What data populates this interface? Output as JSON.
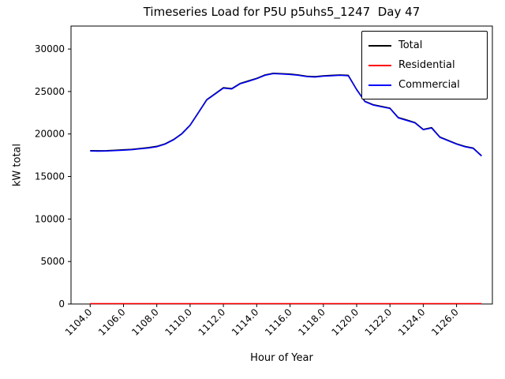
{
  "chart_data": {
    "type": "line",
    "title": "Timeseries Load for P5U p5uhs5_1247  Day 47",
    "xlabel": "Hour of Year",
    "ylabel": "kW total",
    "grid": false,
    "legend_position": "upper right",
    "xlim": [
      1102.85,
      1128.15
    ],
    "ylim": [
      0,
      32700
    ],
    "xticks": [
      1104,
      1106,
      1108,
      1110,
      1112,
      1114,
      1116,
      1118,
      1120,
      1122,
      1124,
      1126
    ],
    "xtick_labels": [
      "1104.0",
      "1106.0",
      "1108.0",
      "1110.0",
      "1112.0",
      "1114.0",
      "1116.0",
      "1118.0",
      "1120.0",
      "1122.0",
      "1124.0",
      "1126.0"
    ],
    "yticks": [
      0,
      5000,
      10000,
      15000,
      20000,
      25000,
      30000
    ],
    "ytick_labels": [
      "0",
      "5000",
      "10000",
      "15000",
      "20000",
      "25000",
      "30000"
    ],
    "x": [
      1104.0,
      1104.5,
      1105.0,
      1105.5,
      1106.0,
      1106.5,
      1107.0,
      1107.5,
      1108.0,
      1108.5,
      1109.0,
      1109.5,
      1110.0,
      1110.5,
      1111.0,
      1111.5,
      1112.0,
      1112.5,
      1113.0,
      1113.5,
      1114.0,
      1114.5,
      1115.0,
      1115.5,
      1116.0,
      1116.5,
      1117.0,
      1117.5,
      1118.0,
      1118.5,
      1119.0,
      1119.5,
      1120.0,
      1120.5,
      1121.0,
      1121.5,
      1122.0,
      1122.5,
      1123.0,
      1123.5,
      1124.0,
      1124.5,
      1125.0,
      1125.5,
      1126.0,
      1126.5,
      1127.0,
      1127.5
    ],
    "series": [
      {
        "name": "Total",
        "color": "#000000",
        "values": [
          18050,
          18030,
          18050,
          18100,
          18150,
          18200,
          18300,
          18400,
          18550,
          18850,
          19350,
          20050,
          21050,
          22550,
          24050,
          24750,
          25450,
          25350,
          25950,
          26250,
          26550,
          26950,
          27150,
          27100,
          27050,
          26950,
          26800,
          26750,
          26850,
          26900,
          26950,
          26900,
          25250,
          23850,
          23450,
          23250,
          23050,
          21950,
          21650,
          21350,
          20550,
          20750,
          19650,
          19250,
          18850,
          18550,
          18350,
          17450
        ]
      },
      {
        "name": "Residential",
        "color": "#ff0000",
        "values": [
          50,
          50,
          50,
          50,
          50,
          50,
          50,
          50,
          50,
          50,
          50,
          50,
          50,
          50,
          50,
          50,
          50,
          50,
          50,
          50,
          50,
          50,
          50,
          50,
          50,
          50,
          50,
          50,
          50,
          50,
          50,
          50,
          50,
          50,
          50,
          50,
          50,
          50,
          50,
          50,
          50,
          50,
          50,
          50,
          50,
          50,
          50,
          50
        ]
      },
      {
        "name": "Commercial",
        "color": "#0000ff",
        "values": [
          18000,
          17980,
          18000,
          18050,
          18100,
          18150,
          18250,
          18350,
          18500,
          18800,
          19300,
          20000,
          21000,
          22500,
          24000,
          24700,
          25400,
          25300,
          25900,
          26200,
          26500,
          26900,
          27100,
          27050,
          27000,
          26900,
          26750,
          26700,
          26800,
          26850,
          26900,
          26850,
          25200,
          23800,
          23400,
          23200,
          23000,
          21900,
          21600,
          21300,
          20500,
          20700,
          19600,
          19200,
          18800,
          18500,
          18300,
          17400
        ]
      }
    ]
  }
}
